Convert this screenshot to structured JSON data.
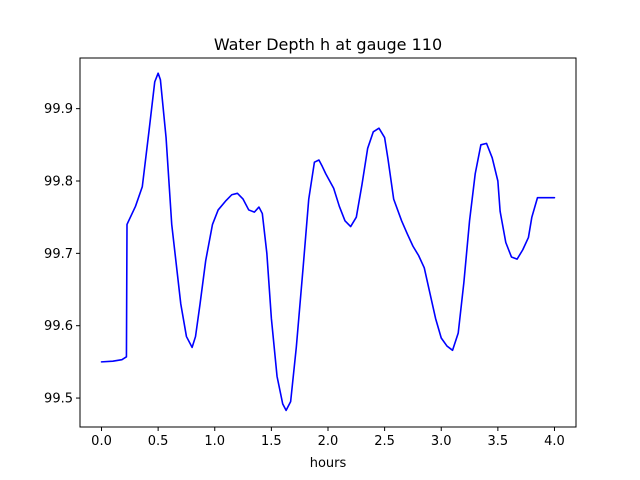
{
  "chart_data": {
    "type": "line",
    "title": "Water Depth h at gauge 110",
    "xlabel": "hours",
    "ylabel": "",
    "xlim": [
      -0.19,
      4.19
    ],
    "ylim": [
      99.46,
      99.97
    ],
    "xticks": [
      0.0,
      0.5,
      1.0,
      1.5,
      2.0,
      2.5,
      3.0,
      3.5,
      4.0
    ],
    "xtick_labels": [
      "0.0",
      "0.5",
      "1.0",
      "1.5",
      "2.0",
      "2.5",
      "3.0",
      "3.5",
      "4.0"
    ],
    "yticks": [
      99.5,
      99.6,
      99.7,
      99.8,
      99.9
    ],
    "ytick_labels": [
      "99.5",
      "99.6",
      "99.7",
      "99.8",
      "99.9"
    ],
    "grid": false,
    "series": [
      {
        "color": "#0000ff",
        "x": [
          0.0,
          0.1,
          0.18,
          0.22,
          0.225,
          0.3,
          0.36,
          0.42,
          0.47,
          0.5,
          0.52,
          0.57,
          0.62,
          0.7,
          0.75,
          0.8,
          0.83,
          0.87,
          0.92,
          0.98,
          1.03,
          1.1,
          1.15,
          1.2,
          1.25,
          1.3,
          1.35,
          1.39,
          1.42,
          1.46,
          1.5,
          1.55,
          1.6,
          1.63,
          1.67,
          1.72,
          1.78,
          1.83,
          1.88,
          1.92,
          1.95,
          1.98,
          2.05,
          2.1,
          2.15,
          2.2,
          2.25,
          2.3,
          2.35,
          2.4,
          2.45,
          2.5,
          2.53,
          2.58,
          2.65,
          2.7,
          2.75,
          2.8,
          2.85,
          2.9,
          2.95,
          3.0,
          3.05,
          3.1,
          3.15,
          3.2,
          3.25,
          3.3,
          3.35,
          3.4,
          3.45,
          3.5,
          3.52,
          3.57,
          3.62,
          3.67,
          3.72,
          3.77,
          3.8,
          3.85,
          3.9,
          3.95,
          4.0
        ],
        "y": [
          99.55,
          99.551,
          99.553,
          99.557,
          99.74,
          99.765,
          99.792,
          99.87,
          99.937,
          99.949,
          99.94,
          99.86,
          99.74,
          99.63,
          99.585,
          99.57,
          99.585,
          99.63,
          99.69,
          99.74,
          99.76,
          99.773,
          99.781,
          99.783,
          99.775,
          99.76,
          99.757,
          99.764,
          99.755,
          99.7,
          99.61,
          99.53,
          99.492,
          99.483,
          99.495,
          99.57,
          99.68,
          99.775,
          99.826,
          99.829,
          99.82,
          99.81,
          99.79,
          99.765,
          99.745,
          99.737,
          99.75,
          99.795,
          99.845,
          99.868,
          99.873,
          99.86,
          99.83,
          99.775,
          99.745,
          99.727,
          99.71,
          99.697,
          99.68,
          99.645,
          99.61,
          99.583,
          99.572,
          99.566,
          99.59,
          99.66,
          99.745,
          99.81,
          99.85,
          99.852,
          99.832,
          99.8,
          99.758,
          99.715,
          99.695,
          99.692,
          99.705,
          99.722,
          99.75,
          99.777,
          99.777,
          99.777,
          99.777
        ]
      }
    ]
  }
}
